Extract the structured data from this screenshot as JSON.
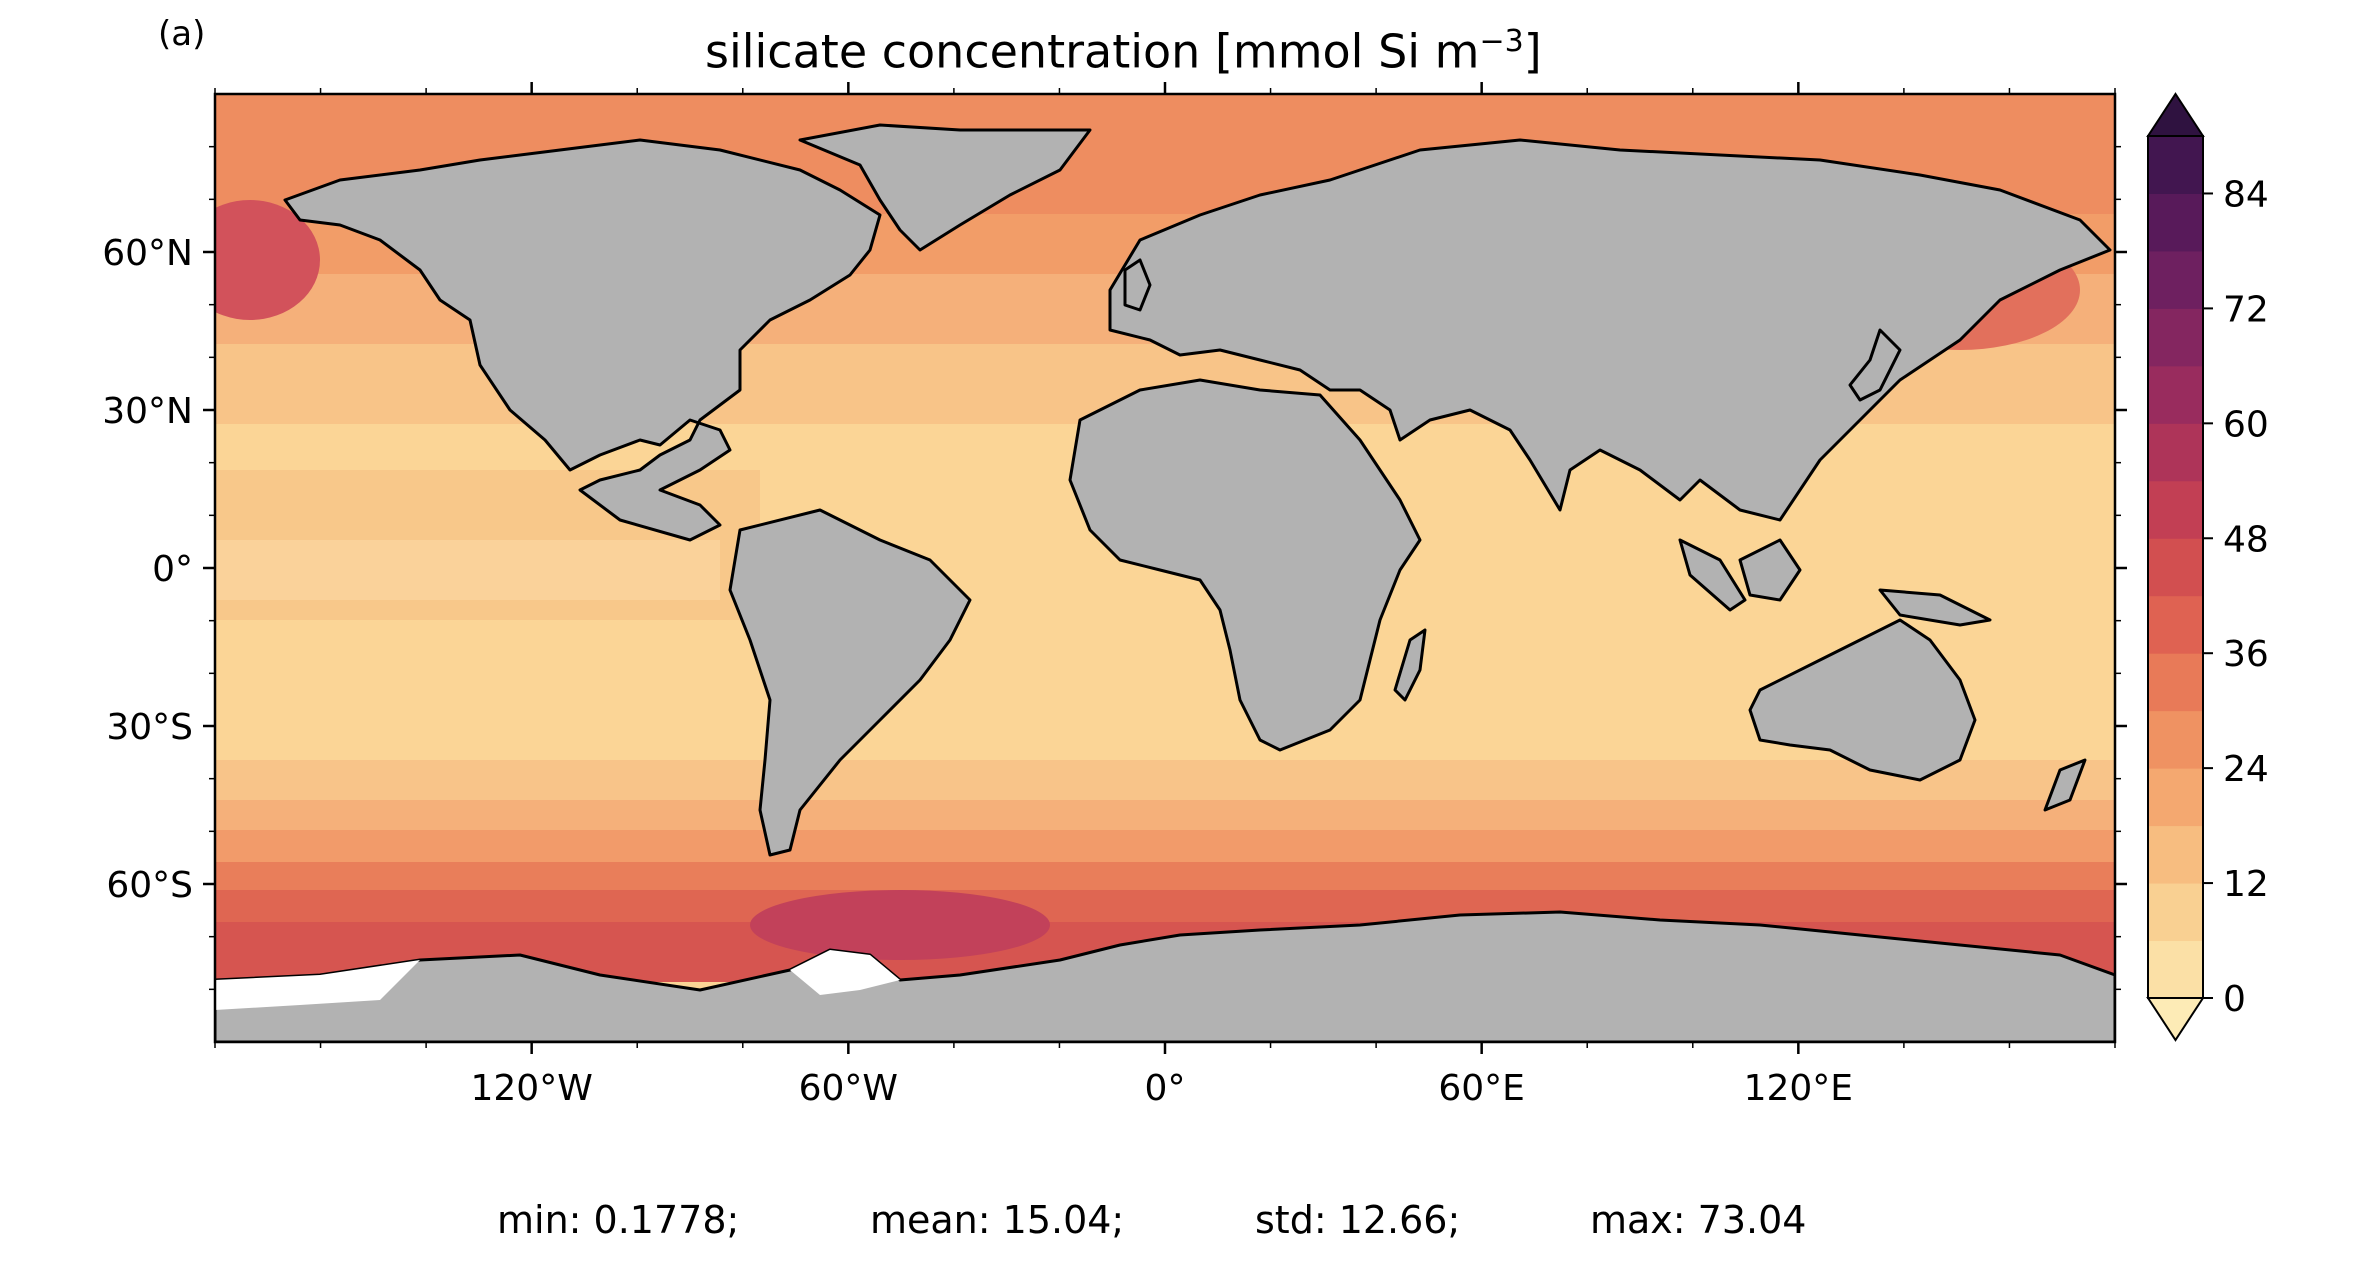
{
  "panel_label": "(a)",
  "title": {
    "main": "silicate concentration [mmol Si m",
    "superscript": "−3",
    "close": "]"
  },
  "axes": {
    "lat_ticks": [
      {
        "value": 60,
        "label": "60°N"
      },
      {
        "value": 30,
        "label": "30°N"
      },
      {
        "value": 0,
        "label": "0°"
      },
      {
        "value": -30,
        "label": "30°S"
      },
      {
        "value": -60,
        "label": "60°S"
      }
    ],
    "lon_ticks": [
      {
        "value": -120,
        "label": "120°W"
      },
      {
        "value": -60,
        "label": "60°W"
      },
      {
        "value": 0,
        "label": "0°"
      },
      {
        "value": 60,
        "label": "60°E"
      },
      {
        "value": 120,
        "label": "120°E"
      }
    ],
    "lon_range": [
      -180,
      180
    ],
    "lat_range": [
      -90,
      90
    ]
  },
  "colorbar": {
    "min": 0,
    "max": 90,
    "step": 6,
    "extend": "both",
    "tick_values": [
      0,
      12,
      24,
      36,
      48,
      60,
      72,
      84
    ],
    "tick_labels": [
      "0",
      "12",
      "24",
      "36",
      "48",
      "60",
      "72",
      "84"
    ],
    "colors": [
      "#fbe0a6",
      "#f9d092",
      "#f7bd80",
      "#f4a870",
      "#ef9262",
      "#e87a58",
      "#df6252",
      "#d24f50",
      "#c23f54",
      "#ae3459",
      "#992c5e",
      "#842660",
      "#6e2060",
      "#581a5a",
      "#421650"
    ],
    "under_color": "#fdebb6",
    "over_color": "#2f1240"
  },
  "stats": {
    "min_label": "min: 0.1778;",
    "mean_label": "mean: 15.04;",
    "std_label": "std: 12.66;",
    "max_label": "max: 73.04"
  },
  "colors": {
    "land": "#b2b2b2",
    "ice": "#ffffff",
    "coast": "#000000"
  }
}
